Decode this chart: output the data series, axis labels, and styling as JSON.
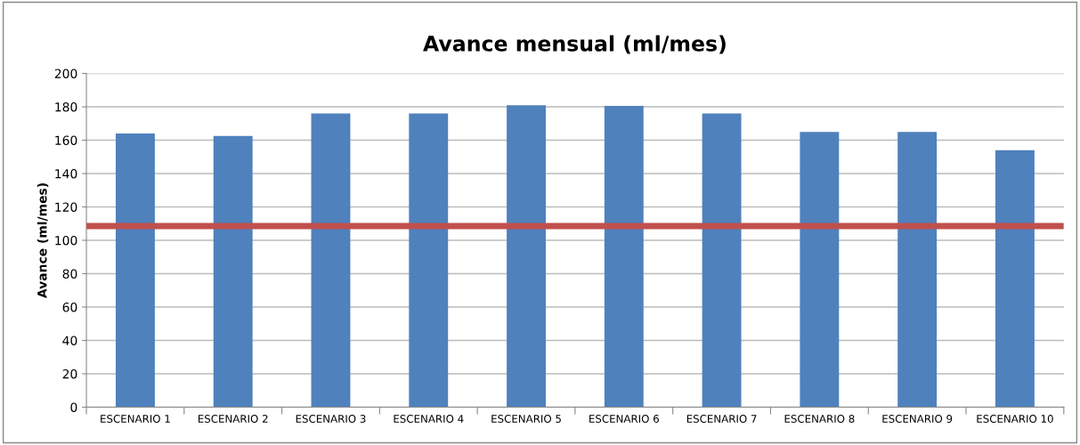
{
  "chart_data": {
    "type": "bar",
    "title": "Avance mensual (ml/mes)",
    "ylabel": "Avance (ml/mes)",
    "categories": [
      "ESCENARIO 1",
      "ESCENARIO 2",
      "ESCENARIO 3",
      "ESCENARIO 4",
      "ESCENARIO 5",
      "ESCENARIO 6",
      "ESCENARIO 7",
      "ESCENARIO 8",
      "ESCENARIO 9",
      "ESCENARIO 10"
    ],
    "values": [
      164,
      162.5,
      176,
      176,
      181,
      180.5,
      176,
      165,
      165,
      154
    ],
    "color": "#4f81bd",
    "ylim": [
      0,
      200
    ],
    "yticks": [
      0,
      20,
      40,
      60,
      80,
      100,
      120,
      140,
      160,
      180,
      200
    ],
    "grid": "y",
    "ref_lines": [
      {
        "axis": "y",
        "value": 108.5,
        "color": "#c0504d",
        "line_style": "solid"
      }
    ]
  }
}
